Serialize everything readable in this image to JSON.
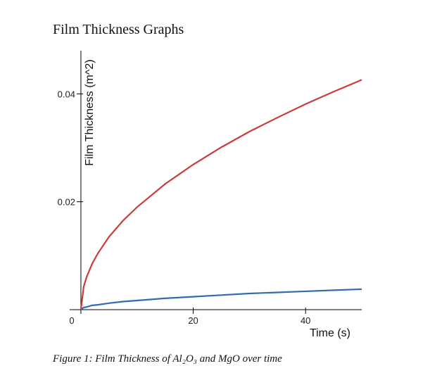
{
  "heading": "Film Thickness Graphs",
  "caption": "Figure 1: Film Thickness of Al₂O₃ and MgO over time",
  "chart_data": {
    "type": "line",
    "x_label": "Time (s)",
    "y_label": "Film Thickness (m^2)",
    "x": [
      0,
      0.5,
      1,
      2,
      3,
      5,
      7.5,
      10,
      15,
      20,
      25,
      30,
      35,
      40,
      45,
      50
    ],
    "series": [
      {
        "color": "#cc3b3b",
        "values": [
          0,
          0.0043,
          0.006,
          0.0085,
          0.0104,
          0.0135,
          0.0165,
          0.019,
          0.0233,
          0.0269,
          0.0301,
          0.033,
          0.0356,
          0.0381,
          0.0404,
          0.0426
        ]
      },
      {
        "color": "#2f6db0",
        "values": [
          0,
          0.0004,
          0.0005,
          0.0008,
          0.0009,
          0.0012,
          0.0015,
          0.0017,
          0.0021,
          0.0024,
          0.0027,
          0.003,
          0.0032,
          0.0034,
          0.0036,
          0.0038
        ]
      }
    ],
    "xlim": [
      -2,
      50
    ],
    "ylim": [
      0,
      0.048
    ],
    "xticks": [
      0,
      20,
      40
    ],
    "yticks": [
      0.02,
      0.04
    ]
  }
}
